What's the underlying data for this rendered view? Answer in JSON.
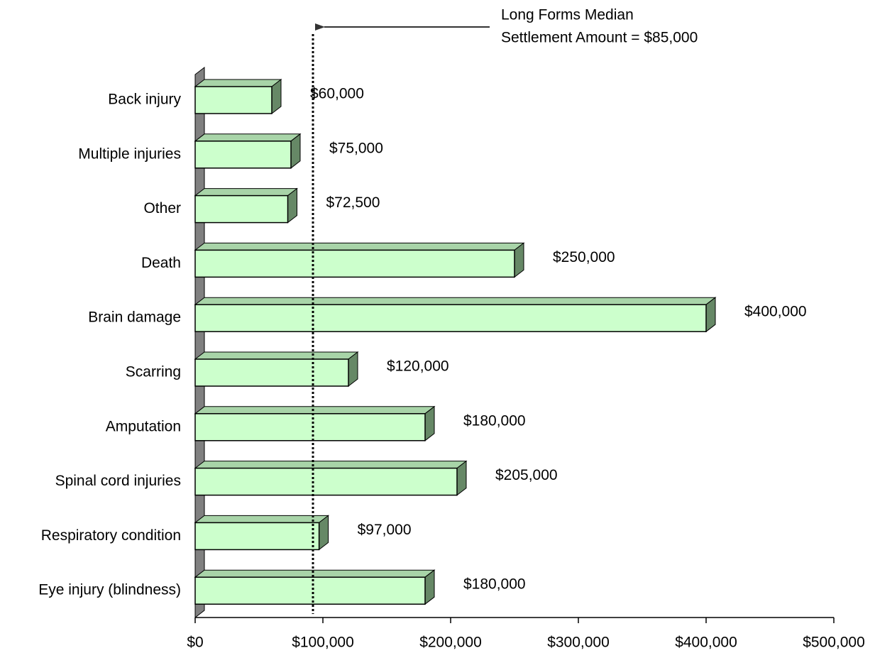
{
  "chart_data": {
    "type": "bar",
    "orientation": "horizontal",
    "categories": [
      "Back injury",
      "Multiple injuries",
      "Other",
      "Death",
      "Brain damage",
      "Scarring",
      "Amputation",
      "Spinal cord injuries",
      "Respiratory condition",
      "Eye injury (blindness)"
    ],
    "values": [
      60000,
      75000,
      72500,
      250000,
      400000,
      120000,
      180000,
      205000,
      97000,
      180000
    ],
    "value_labels": [
      "$60,000",
      "$75,000",
      "$72,500",
      "$250,000",
      "$400,000",
      "$120,000",
      "$180,000",
      "$205,000",
      "$97,000",
      "$180,000"
    ],
    "color": "#ccffcc",
    "xlim": [
      0,
      500000
    ],
    "xticks": [
      {
        "value": 0,
        "label": "$0"
      },
      {
        "value": 100000,
        "label": "$100,000"
      },
      {
        "value": 200000,
        "label": "$200,000"
      },
      {
        "value": 300000,
        "label": "$300,000"
      },
      {
        "value": 400000,
        "label": "$400,000"
      },
      {
        "value": 500000,
        "label": "$500,000"
      }
    ],
    "reference_line": {
      "value": 85000,
      "label": [
        "Long Forms Median",
        "Settlement Amount = $85,000"
      ]
    }
  }
}
